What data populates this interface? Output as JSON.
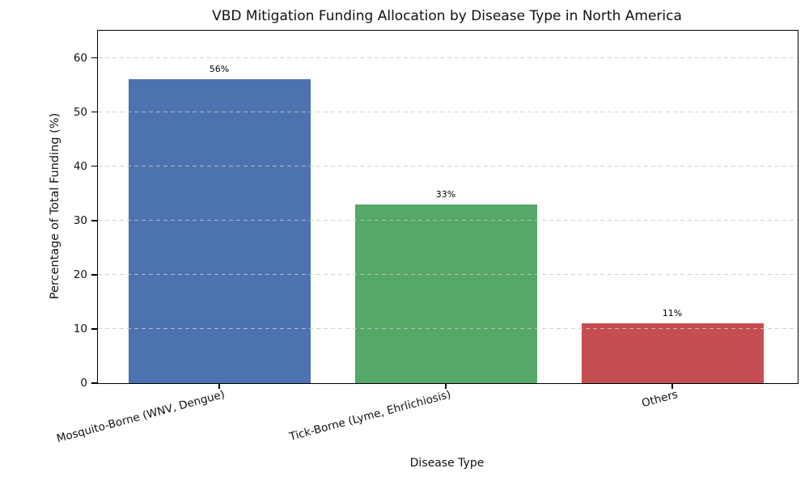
{
  "chart_data": {
    "type": "bar",
    "title": "VBD Mitigation Funding Allocation by Disease Type in North America",
    "xlabel": "Disease Type",
    "ylabel": "Percentage of Total Funding (%)",
    "categories": [
      "Mosquito-Borne (WNV, Dengue)",
      "Tick-Borne (Lyme, Ehrlichiosis)",
      "Others"
    ],
    "values": [
      56,
      33,
      11
    ],
    "value_labels": [
      "56%",
      "33%",
      "11%"
    ],
    "bar_colors": [
      "#4C72B0",
      "#55A868",
      "#C44E52"
    ],
    "ylim": [
      0,
      65
    ],
    "yticks": [
      0,
      10,
      20,
      30,
      40,
      50,
      60
    ],
    "grid": {
      "axis": "y",
      "style": "dashed",
      "color": "#c9c9c9",
      "above_bars": true
    },
    "legend_position": "none",
    "background_color": "#ffffff"
  }
}
